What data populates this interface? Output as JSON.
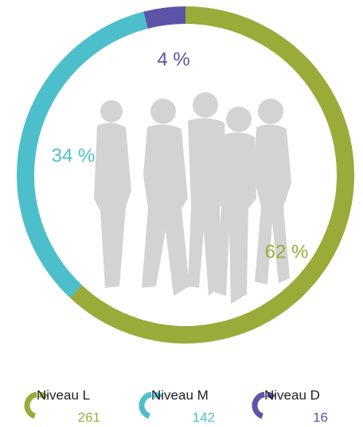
{
  "chart_data": {
    "type": "donut",
    "categories": [
      "Niveau L",
      "Niveau M",
      "Niveau D"
    ],
    "values": [
      62,
      34,
      4
    ],
    "value_labels": [
      "62 %",
      "34 %",
      "4 %"
    ],
    "colors": [
      "#9aab3a",
      "#4dbfcb",
      "#5a55a6"
    ],
    "counts": [
      261,
      142,
      16
    ]
  }
}
